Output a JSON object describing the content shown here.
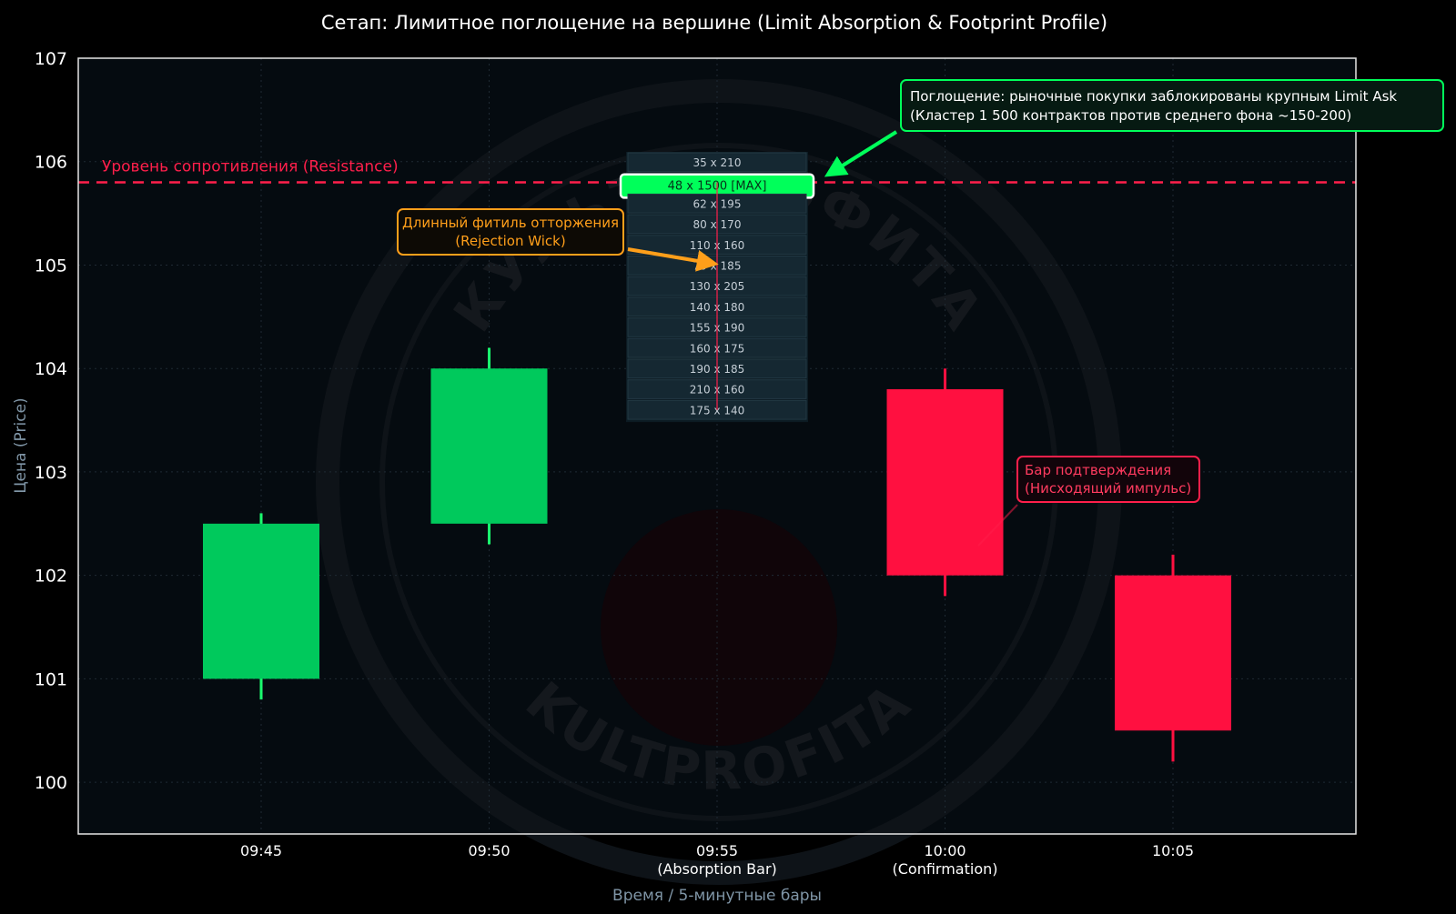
{
  "chart_data": {
    "type": "candlestick",
    "title": "Сетап: Лимитное поглощение на вершине (Limit Absorption & Footprint Profile)",
    "xlabel": "Время / 5-минутные бары",
    "ylabel": "Цена (Price)",
    "ylim": [
      99.5,
      107
    ],
    "yticks": [
      100,
      101,
      102,
      103,
      104,
      105,
      106,
      107
    ],
    "grid": true,
    "categories": [
      {
        "time": "09:45",
        "sublabel": ""
      },
      {
        "time": "09:50",
        "sublabel": ""
      },
      {
        "time": "09:55",
        "sublabel": "(Absorption Bar)"
      },
      {
        "time": "10:00",
        "sublabel": "(Confirmation)"
      },
      {
        "time": "10:05",
        "sublabel": ""
      }
    ],
    "candles": [
      {
        "time": "09:45",
        "open": 101.0,
        "high": 102.6,
        "low": 100.8,
        "close": 102.5,
        "direction": "up"
      },
      {
        "time": "09:50",
        "open": 102.5,
        "high": 104.2,
        "low": 102.3,
        "close": 104.0,
        "direction": "up"
      },
      {
        "time": "09:55",
        "open": 104.0,
        "high": 105.8,
        "low": 103.6,
        "close": 103.8,
        "direction": "down"
      },
      {
        "time": "10:00",
        "open": 103.8,
        "high": 104.0,
        "low": 101.8,
        "close": 102.0,
        "direction": "down"
      },
      {
        "time": "10:05",
        "open": 102.0,
        "high": 102.2,
        "low": 100.2,
        "close": 100.5,
        "direction": "down"
      }
    ],
    "resistance": {
      "price": 105.8,
      "label": "Уровень сопротивления (Resistance)"
    },
    "footprint": {
      "bar": "09:55",
      "rows": [
        {
          "label": "35 x 210",
          "max": false
        },
        {
          "label": "48 x 1500 [MAX]",
          "max": true
        },
        {
          "label": "62 x 195",
          "max": false
        },
        {
          "label": "80 x 170",
          "max": false
        },
        {
          "label": "110 x 160",
          "max": false
        },
        {
          "label": "75 x 185",
          "max": false
        },
        {
          "label": "130 x 205",
          "max": false
        },
        {
          "label": "140 x 180",
          "max": false
        },
        {
          "label": "155 x 190",
          "max": false
        },
        {
          "label": "160 x 175",
          "max": false
        },
        {
          "label": "190 x 185",
          "max": false
        },
        {
          "label": "210 x 160",
          "max": false
        },
        {
          "label": "175 x 140",
          "max": false
        }
      ]
    },
    "annotations": [
      {
        "id": "absorption",
        "lines": [
          "Поглощение: рыночные покупки заблокированы крупным Limit Ask",
          "(Кластер 1 500 контрактов против среднего фона ~150-200)"
        ],
        "color": "#00ff5a"
      },
      {
        "id": "wick",
        "lines": [
          "Длинный фитиль отторжения",
          "(Rejection Wick)"
        ],
        "color": "#ff9f1a"
      },
      {
        "id": "confirmation",
        "lines": [
          "Бар подтверждения",
          "(Нисходящий импульс)"
        ],
        "color": "#ff1f4b"
      }
    ],
    "watermark": {
      "top": "КУЛЬТ ПРОФИТА",
      "bottom": "KULTPROFITA"
    },
    "colors": {
      "up": "#00c95c",
      "down": "#ff1040",
      "resistance": "#ff1f4b",
      "plot_bg": "#050b10",
      "footprint_max": "#00ff5a"
    }
  }
}
